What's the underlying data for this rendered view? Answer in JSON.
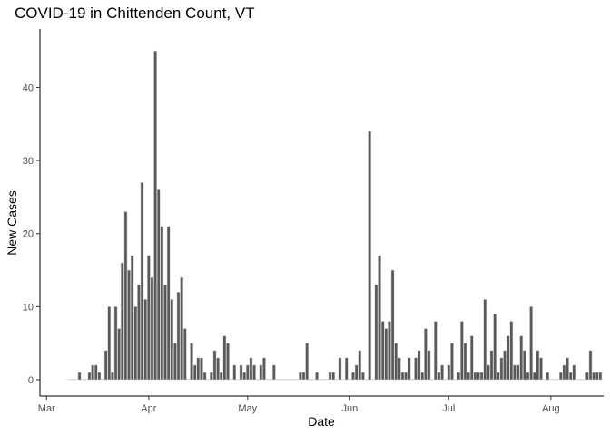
{
  "chart_data": {
    "type": "bar",
    "title": "COVID-19 in Chittenden Count, VT",
    "xlabel": "Date",
    "ylabel": "New Cases",
    "ylim": [
      0,
      47
    ],
    "xlim": [
      "2020-02-28",
      "2020-08-17"
    ],
    "grid": false,
    "y_ticks": [
      0,
      10,
      20,
      30,
      40
    ],
    "x_ticks": [
      {
        "date": "2020-03-01",
        "label": "Mar"
      },
      {
        "date": "2020-04-01",
        "label": "Apr"
      },
      {
        "date": "2020-05-01",
        "label": "May"
      },
      {
        "date": "2020-06-01",
        "label": "Jun"
      },
      {
        "date": "2020-07-01",
        "label": "Jul"
      },
      {
        "date": "2020-08-01",
        "label": "Aug"
      }
    ],
    "start_date": "2020-03-08",
    "values": [
      0,
      0,
      0,
      1,
      0,
      0,
      1,
      2,
      2,
      1,
      0,
      4,
      10,
      1,
      10,
      7,
      16,
      23,
      15,
      17,
      10,
      13,
      27,
      11,
      17,
      14,
      45,
      26,
      21,
      13,
      21,
      11,
      5,
      12,
      14,
      7,
      0,
      5,
      2,
      3,
      3,
      1,
      0,
      1,
      4,
      3,
      1,
      6,
      5,
      0,
      2,
      0,
      2,
      1,
      2,
      3,
      2,
      0,
      2,
      3,
      0,
      0,
      2,
      0,
      0,
      0,
      0,
      0,
      0,
      0,
      1,
      1,
      5,
      0,
      0,
      1,
      0,
      0,
      0,
      1,
      1,
      0,
      3,
      0,
      3,
      0,
      1,
      2,
      4,
      1,
      0,
      34,
      0,
      13,
      17,
      8,
      7,
      8,
      15,
      5,
      3,
      1,
      1,
      3,
      0,
      3,
      4,
      1,
      7,
      4,
      0,
      8,
      1,
      2,
      0,
      2,
      5,
      0,
      1,
      8,
      5,
      1,
      6,
      1,
      1,
      1,
      11,
      2,
      4,
      9,
      1,
      3,
      4,
      6,
      8,
      2,
      2,
      6,
      4,
      1,
      10,
      1,
      4,
      3,
      0,
      1,
      0,
      0,
      0,
      1,
      2,
      3,
      1,
      2,
      0,
      0,
      0,
      1,
      4,
      1,
      1,
      1
    ]
  }
}
